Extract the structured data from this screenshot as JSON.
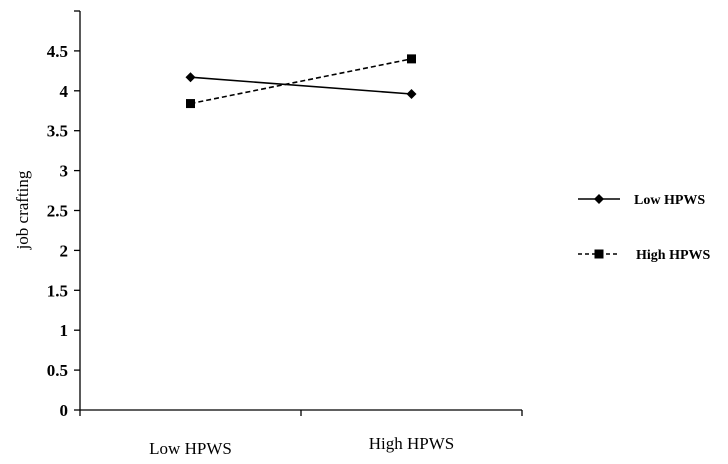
{
  "chart_data": {
    "type": "line",
    "title": "",
    "xlabel": "",
    "ylabel": "job crafting",
    "categories": [
      "Low HPWS",
      "High HPWS"
    ],
    "series": [
      {
        "name": "Low HPWS",
        "marker": "diamond",
        "line": "solid",
        "values": [
          4.17,
          3.96
        ]
      },
      {
        "name": "High HPWS",
        "marker": "square",
        "line": "dashed",
        "values": [
          3.84,
          4.4
        ]
      }
    ],
    "ylim": [
      0,
      5
    ],
    "yticks": [
      "0",
      "0.5",
      "1",
      "1.5",
      "2",
      "2.5",
      "3",
      "3.5",
      "4",
      "4.5"
    ],
    "grid": false,
    "legend_position": "right"
  },
  "colors": {
    "line": "#000000",
    "background": "#ffffff"
  }
}
